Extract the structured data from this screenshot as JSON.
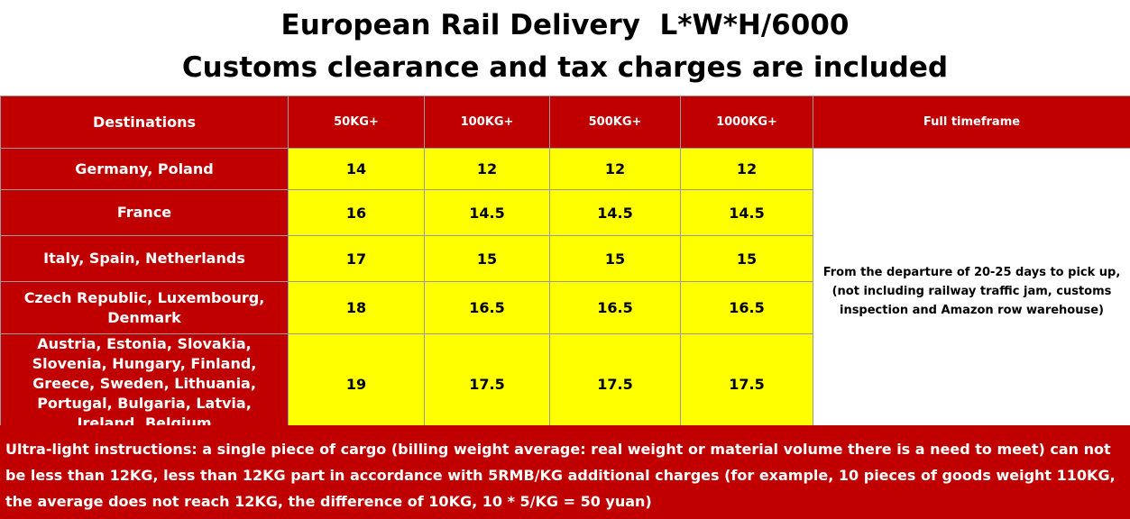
{
  "title": {
    "line1": "European Rail Delivery  L*W*H/6000",
    "line2": "Customs clearance and tax charges are included"
  },
  "table": {
    "headers": [
      "Destinations",
      "50KG+",
      "100KG+",
      "500KG+",
      "1000KG+",
      "Full timeframe"
    ],
    "rows": [
      {
        "destination": "Germany, Poland",
        "prices": [
          "14",
          "12",
          "12",
          "12"
        ]
      },
      {
        "destination": "France",
        "prices": [
          "16",
          "14.5",
          "14.5",
          "14.5"
        ]
      },
      {
        "destination": "Italy, Spain, Netherlands",
        "prices": [
          "17",
          "15",
          "15",
          "15"
        ]
      },
      {
        "destination": "Czech Republic, Luxembourg, Denmark",
        "prices": [
          "18",
          "16.5",
          "16.5",
          "16.5"
        ]
      },
      {
        "destination": "Austria, Estonia, Slovakia, Slovenia, Hungary, Finland, Greece, Sweden, Lithuania, Portugal, Bulgaria, Latvia, Ireland, Belgium",
        "prices": [
          "19",
          "17.5",
          "17.5",
          "17.5"
        ]
      }
    ],
    "timeframe": "From the departure of 20-25 days to pick up, (not including railway traffic jam, customs inspection and Amazon row warehouse)"
  },
  "note": "Ultra-light instructions: a single piece of cargo (billing weight average: real weight or material volume there is a need to meet) can not be less than 12KG, less than 12KG part in accordance with 5RMB/KG additional charges (for example, 10 pieces of goods weight 110KG, the average does not reach 12KG, the difference of 10KG, 10 * 5/KG = 50 yuan)",
  "colors": {
    "header_bg": "#c00000",
    "price_bg": "#ffff00",
    "text_light": "#ffffff"
  }
}
